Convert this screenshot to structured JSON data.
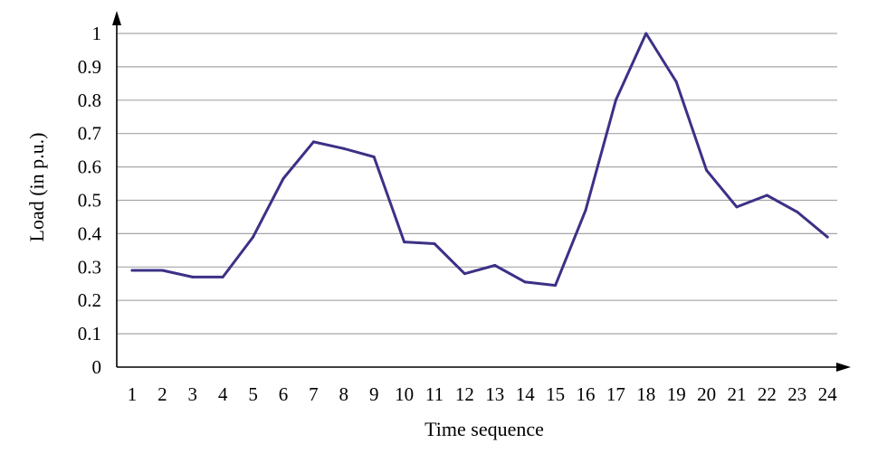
{
  "chart_data": {
    "type": "line",
    "title": "",
    "xlabel": "Time sequence",
    "ylabel": "Load (in p.u.)",
    "x": [
      1,
      2,
      3,
      4,
      5,
      6,
      7,
      8,
      9,
      10,
      11,
      12,
      13,
      14,
      15,
      16,
      17,
      18,
      19,
      20,
      21,
      22,
      23,
      24
    ],
    "x_tick_labels": [
      "1",
      "2",
      "3",
      "4",
      "5",
      "6",
      "7",
      "8",
      "9",
      "10",
      "11",
      "12",
      "13",
      "14",
      "15",
      "16",
      "17",
      "18",
      "19",
      "20",
      "21",
      "22",
      "23",
      "24"
    ],
    "y_ticks": [
      0,
      0.1,
      0.2,
      0.3,
      0.4,
      0.5,
      0.6,
      0.7,
      0.8,
      0.9,
      1
    ],
    "y_tick_labels": [
      "0",
      "0.1",
      "0.2",
      "0.3",
      "0.4",
      "0.5",
      "0.6",
      "0.7",
      "0.8",
      "0.9",
      "1"
    ],
    "ylim": [
      0,
      1
    ],
    "grid": true,
    "legend": "none",
    "series": [
      {
        "color": "#3b3186",
        "values": [
          0.29,
          0.29,
          0.27,
          0.27,
          0.39,
          0.565,
          0.675,
          0.655,
          0.63,
          0.375,
          0.37,
          0.28,
          0.305,
          0.255,
          0.245,
          0.47,
          0.8,
          1.0,
          0.855,
          0.59,
          0.48,
          0.515,
          0.465,
          0.39
        ]
      }
    ]
  }
}
